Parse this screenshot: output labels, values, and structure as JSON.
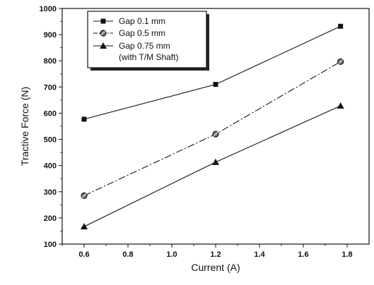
{
  "chart_data": {
    "type": "line",
    "title": "",
    "xlabel": "Current (A)",
    "ylabel": "Tractive Force (N)",
    "xlim": [
      0.5,
      1.9
    ],
    "ylim": [
      100,
      1000
    ],
    "x_ticks": [
      "0.6",
      "0.8",
      "1.0",
      "1.2",
      "1.4",
      "1.6",
      "1.8"
    ],
    "y_ticks": [
      "100",
      "200",
      "300",
      "400",
      "500",
      "600",
      "700",
      "800",
      "900",
      "1000"
    ],
    "grid": false,
    "legend_position": "top-left",
    "x": [
      0.6,
      1.2,
      1.77
    ],
    "series": [
      {
        "name": "Gap 0.1 mm",
        "marker": "square",
        "line": "solid",
        "color": "#111111",
        "values": [
          577,
          710,
          932
        ]
      },
      {
        "name": "Gap 0.5 mm",
        "marker": "circle",
        "line": "dashdot",
        "color": "#111111",
        "values": [
          285,
          520,
          797
        ]
      },
      {
        "name": "Gap 0.75 mm",
        "name_line2": "(with T/M Shaft)",
        "marker": "triangle",
        "line": "solid",
        "color": "#111111",
        "values": [
          167,
          413,
          628
        ]
      }
    ]
  }
}
